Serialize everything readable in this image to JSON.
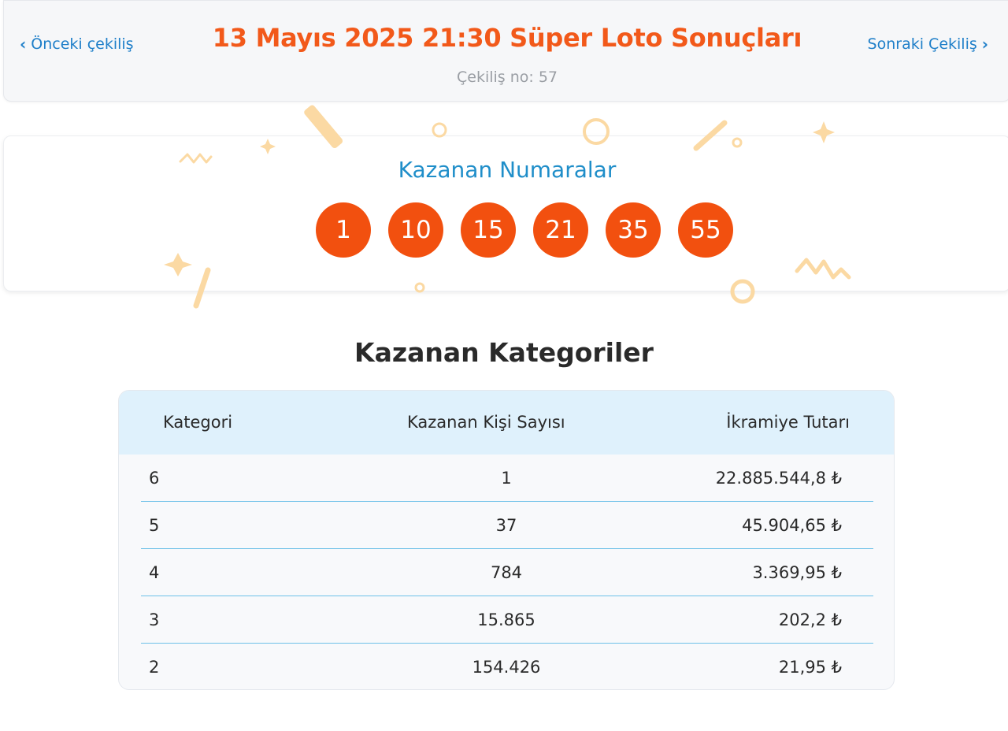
{
  "header": {
    "prev_label": "Önceki çekiliş",
    "next_label": "Sonraki Çekiliş",
    "title": "13 Mayıs 2025 21:30 Süper Loto Sonuçları",
    "draw_number": "Çekiliş no: 57"
  },
  "winning": {
    "heading": "Kazanan Numaralar",
    "numbers": [
      "1",
      "10",
      "15",
      "21",
      "35",
      "55"
    ]
  },
  "categories": {
    "heading": "Kazanan Kategoriler",
    "columns": [
      "Kategori",
      "Kazanan Kişi Sayısı",
      "İkramiye Tutarı"
    ],
    "rows": [
      {
        "category": "6",
        "winners": "1",
        "prize": "22.885.544,8 ₺"
      },
      {
        "category": "5",
        "winners": "37",
        "prize": "45.904,65 ₺"
      },
      {
        "category": "4",
        "winners": "784",
        "prize": "3.369,95 ₺"
      },
      {
        "category": "3",
        "winners": "15.865",
        "prize": "202,2 ₺"
      },
      {
        "category": "2",
        "winners": "154.426",
        "prize": "21,95 ₺"
      }
    ]
  },
  "colors": {
    "accent_orange": "#f2591a",
    "ball_orange": "#f2500f",
    "link_blue": "#1f7fc9",
    "header_row_blue": "#dff1fc",
    "confetti": "#fbd9a3"
  }
}
